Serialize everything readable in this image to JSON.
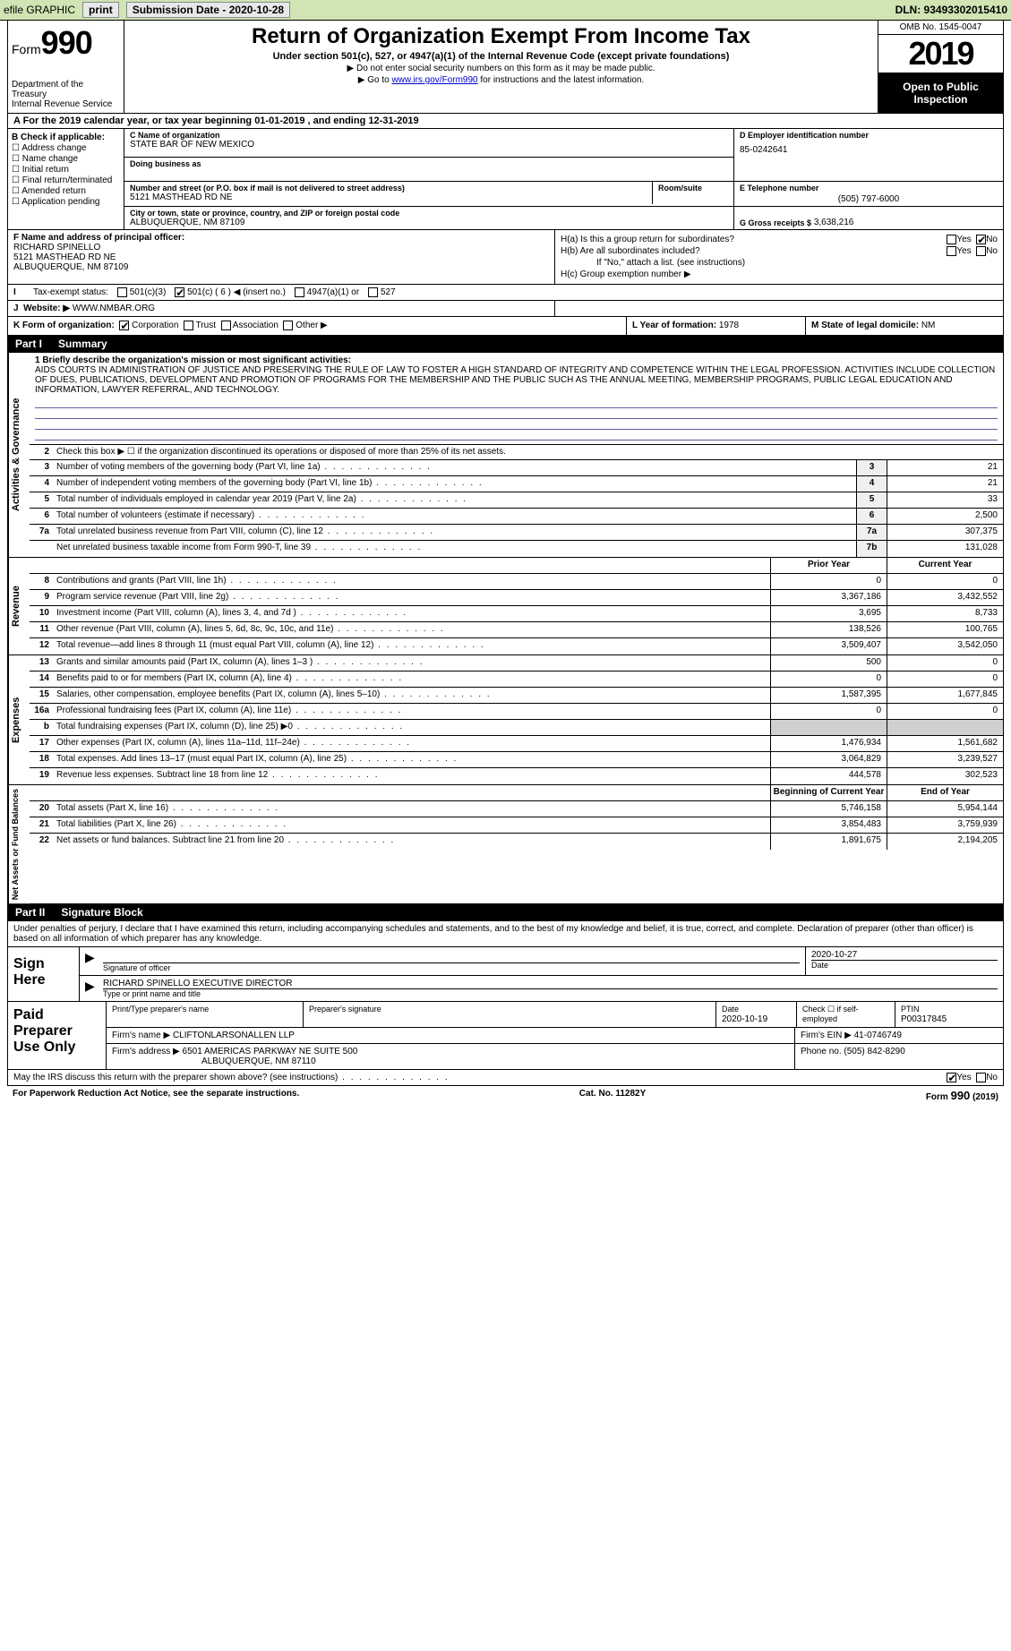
{
  "topbar": {
    "efile": "efile GRAPHIC",
    "print": "print",
    "submission": "Submission Date - 2020-10-28",
    "dln": "DLN: 93493302015410"
  },
  "header": {
    "form_word": "Form",
    "form_num": "990",
    "dept": "Department of the Treasury",
    "irs": "Internal Revenue Service",
    "title": "Return of Organization Exempt From Income Tax",
    "subtitle": "Under section 501(c), 527, or 4947(a)(1) of the Internal Revenue Code (except private foundations)",
    "note1": "▶ Do not enter social security numbers on this form as it may be made public.",
    "note2_pre": "▶ Go to ",
    "note2_link": "www.irs.gov/Form990",
    "note2_post": " for instructions and the latest information.",
    "omb": "OMB No. 1545-0047",
    "year": "2019",
    "inspect": "Open to Public Inspection"
  },
  "row_a": "A  For the 2019 calendar year, or tax year beginning 01-01-2019    , and ending 12-31-2019",
  "col_b": {
    "title": "B Check if applicable:",
    "items": [
      "Address change",
      "Name change",
      "Initial return",
      "Final return/terminated",
      "Amended return",
      "Application pending"
    ]
  },
  "c": {
    "lbl_name": "C Name of organization",
    "org": "STATE BAR OF NEW MEXICO",
    "dba_lbl": "Doing business as",
    "addr_lbl": "Number and street (or P.O. box if mail is not delivered to street address)",
    "room_lbl": "Room/suite",
    "addr": "5121 MASTHEAD RD NE",
    "city_lbl": "City or town, state or province, country, and ZIP or foreign postal code",
    "city": "ALBUQUERQUE, NM  87109"
  },
  "d": {
    "lbl": "D Employer identification number",
    "val": "85-0242641"
  },
  "e": {
    "lbl": "E Telephone number",
    "val": "(505) 797-6000"
  },
  "g": {
    "lbl": "G Gross receipts $",
    "val": "3,638,216"
  },
  "f": {
    "lbl": "F Name and address of principal officer:",
    "name": "RICHARD SPINELLO",
    "addr1": "5121 MASTHEAD RD NE",
    "addr2": "ALBUQUERQUE, NM  87109"
  },
  "h": {
    "a": "H(a)  Is this a group return for subordinates?",
    "b": "H(b)  Are all subordinates included?",
    "note": "If \"No,\" attach a list. (see instructions)",
    "c": "H(c)  Group exemption number ▶",
    "yes": "Yes",
    "no": "No"
  },
  "i": {
    "lbl": "Tax-exempt status:",
    "opts": [
      "501(c)(3)",
      "501(c) ( 6 ) ◀ (insert no.)",
      "4947(a)(1) or",
      "527"
    ]
  },
  "j": {
    "lbl": "Website: ▶",
    "val": "WWW.NMBAR.ORG"
  },
  "k": {
    "lbl": "K Form of organization:",
    "opts": [
      "Corporation",
      "Trust",
      "Association",
      "Other ▶"
    ]
  },
  "l": {
    "lbl": "L Year of formation:",
    "val": "1978"
  },
  "m": {
    "lbl": "M State of legal domicile:",
    "val": "NM"
  },
  "part1": {
    "pt": "Part I",
    "title": "Summary"
  },
  "mission": {
    "q": "1   Briefly describe the organization's mission or most significant activities:",
    "text": "AIDS COURTS IN ADMINISTRATION OF JUSTICE AND PRESERVING THE RULE OF LAW TO FOSTER A HIGH STANDARD OF INTEGRITY AND COMPETENCE WITHIN THE LEGAL PROFESSION. ACTIVITIES INCLUDE COLLECTION OF DUES, PUBLICATIONS, DEVELOPMENT AND PROMOTION OF PROGRAMS FOR THE MEMBERSHIP AND THE PUBLIC SUCH AS THE ANNUAL MEETING, MEMBERSHIP PROGRAMS, PUBLIC LEGAL EDUCATION AND INFORMATION, LAWYER REFERRAL, AND TECHNOLOGY."
  },
  "gov": {
    "label": "Activities & Governance",
    "l2": "Check this box ▶ ☐  if the organization discontinued its operations or disposed of more than 25% of its net assets.",
    "rows": [
      {
        "n": "3",
        "t": "Number of voting members of the governing body (Part VI, line 1a)",
        "b": "3",
        "v": "21"
      },
      {
        "n": "4",
        "t": "Number of independent voting members of the governing body (Part VI, line 1b)",
        "b": "4",
        "v": "21"
      },
      {
        "n": "5",
        "t": "Total number of individuals employed in calendar year 2019 (Part V, line 2a)",
        "b": "5",
        "v": "33"
      },
      {
        "n": "6",
        "t": "Total number of volunteers (estimate if necessary)",
        "b": "6",
        "v": "2,500"
      },
      {
        "n": "7a",
        "t": "Total unrelated business revenue from Part VIII, column (C), line 12",
        "b": "7a",
        "v": "307,375"
      },
      {
        "n": "",
        "t": "Net unrelated business taxable income from Form 990-T, line 39",
        "b": "7b",
        "v": "131,028"
      }
    ]
  },
  "colheads": {
    "prior": "Prior Year",
    "current": "Current Year",
    "begin": "Beginning of Current Year",
    "end": "End of Year"
  },
  "rev": {
    "label": "Revenue",
    "rows": [
      {
        "n": "8",
        "t": "Contributions and grants (Part VIII, line 1h)",
        "p": "0",
        "c": "0"
      },
      {
        "n": "9",
        "t": "Program service revenue (Part VIII, line 2g)",
        "p": "3,367,186",
        "c": "3,432,552"
      },
      {
        "n": "10",
        "t": "Investment income (Part VIII, column (A), lines 3, 4, and 7d )",
        "p": "3,695",
        "c": "8,733"
      },
      {
        "n": "11",
        "t": "Other revenue (Part VIII, column (A), lines 5, 6d, 8c, 9c, 10c, and 11e)",
        "p": "138,526",
        "c": "100,765"
      },
      {
        "n": "12",
        "t": "Total revenue—add lines 8 through 11 (must equal Part VIII, column (A), line 12)",
        "p": "3,509,407",
        "c": "3,542,050"
      }
    ]
  },
  "exp": {
    "label": "Expenses",
    "rows": [
      {
        "n": "13",
        "t": "Grants and similar amounts paid (Part IX, column (A), lines 1–3 )",
        "p": "500",
        "c": "0"
      },
      {
        "n": "14",
        "t": "Benefits paid to or for members (Part IX, column (A), line 4)",
        "p": "0",
        "c": "0"
      },
      {
        "n": "15",
        "t": "Salaries, other compensation, employee benefits (Part IX, column (A), lines 5–10)",
        "p": "1,587,395",
        "c": "1,677,845"
      },
      {
        "n": "16a",
        "t": "Professional fundraising fees (Part IX, column (A), line 11e)",
        "p": "0",
        "c": "0"
      },
      {
        "n": "b",
        "t": "Total fundraising expenses (Part IX, column (D), line 25) ▶0",
        "p": "",
        "c": "",
        "shade": true
      },
      {
        "n": "17",
        "t": "Other expenses (Part IX, column (A), lines 11a–11d, 11f–24e)",
        "p": "1,476,934",
        "c": "1,561,682"
      },
      {
        "n": "18",
        "t": "Total expenses. Add lines 13–17 (must equal Part IX, column (A), line 25)",
        "p": "3,064,829",
        "c": "3,239,527"
      },
      {
        "n": "19",
        "t": "Revenue less expenses. Subtract line 18 from line 12",
        "p": "444,578",
        "c": "302,523"
      }
    ]
  },
  "net": {
    "label": "Net Assets or Fund Balances",
    "rows": [
      {
        "n": "20",
        "t": "Total assets (Part X, line 16)",
        "p": "5,746,158",
        "c": "5,954,144"
      },
      {
        "n": "21",
        "t": "Total liabilities (Part X, line 26)",
        "p": "3,854,483",
        "c": "3,759,939"
      },
      {
        "n": "22",
        "t": "Net assets or fund balances. Subtract line 21 from line 20",
        "p": "1,891,675",
        "c": "2,194,205"
      }
    ]
  },
  "part2": {
    "pt": "Part II",
    "title": "Signature Block"
  },
  "sig": {
    "decl": "Under penalties of perjury, I declare that I have examined this return, including accompanying schedules and statements, and to the best of my knowledge and belief, it is true, correct, and complete. Declaration of preparer (other than officer) is based on all information of which preparer has any knowledge.",
    "sign_here": "Sign Here",
    "sig_officer": "Signature of officer",
    "date": "Date",
    "sig_date": "2020-10-27",
    "name_title": "RICHARD SPINELLO  EXECUTIVE DIRECTOR",
    "type_name": "Type or print name and title"
  },
  "paid": {
    "label": "Paid Preparer Use Only",
    "h1": "Print/Type preparer's name",
    "h2": "Preparer's signature",
    "h3": "Date",
    "date": "2020-10-19",
    "h4": "Check ☐ if self-employed",
    "h5": "PTIN",
    "ptin": "P00317845",
    "firm_lbl": "Firm's name    ▶",
    "firm": "CLIFTONLARSONALLEN LLP",
    "ein_lbl": "Firm's EIN ▶",
    "ein": "41-0746749",
    "addr_lbl": "Firm's address ▶",
    "addr1": "6501 AMERICAS PARKWAY NE SUITE 500",
    "addr2": "ALBUQUERQUE, NM  87110",
    "phone_lbl": "Phone no.",
    "phone": "(505) 842-8290"
  },
  "discuss": {
    "q": "May the IRS discuss this return with the preparer shown above? (see instructions)",
    "yes": "Yes",
    "no": "No"
  },
  "footer": {
    "pra": "For Paperwork Reduction Act Notice, see the separate instructions.",
    "cat": "Cat. No. 11282Y",
    "form": "Form 990 (2019)"
  }
}
